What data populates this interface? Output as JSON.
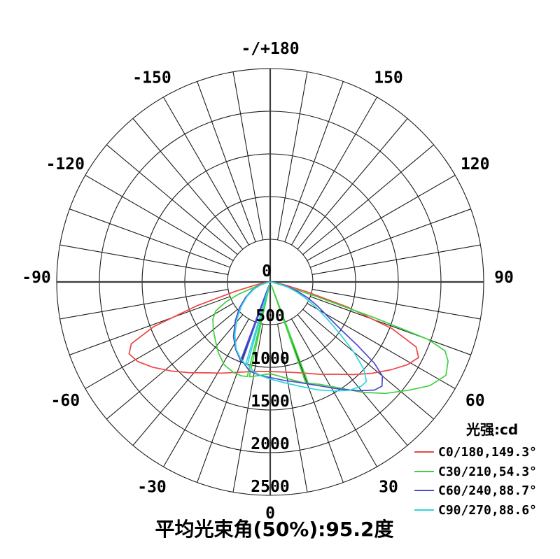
{
  "chart_data": {
    "type": "polar_photometric",
    "title": "平均光束角(50%):95.2度",
    "legend_title": "光强:cd",
    "unit": "cd",
    "radial_range": [
      0,
      2500
    ],
    "radial_ring_step": 500,
    "radial_tick_labels": [
      "500",
      "1000",
      "1500",
      "2000",
      "2500"
    ],
    "center_tick_label": "0",
    "spoke_step_deg": 10,
    "angle_label_step_deg": 30,
    "angle_labels": [
      {
        "deg": 180,
        "label": "-/+180"
      },
      {
        "deg": 150,
        "label": "150"
      },
      {
        "deg": -150,
        "label": "-150"
      },
      {
        "deg": 120,
        "label": "120"
      },
      {
        "deg": -120,
        "label": "-120"
      },
      {
        "deg": 90,
        "label": "90"
      },
      {
        "deg": -90,
        "label": "-90"
      },
      {
        "deg": 60,
        "label": "60"
      },
      {
        "deg": -60,
        "label": "-60"
      },
      {
        "deg": 30,
        "label": "30"
      },
      {
        "deg": -30,
        "label": "-30"
      },
      {
        "deg": 0,
        "label": "0"
      }
    ],
    "series": [
      {
        "name": "C0/180,149.3°",
        "color": "#ee4444",
        "points": [
          [
            -90,
            0
          ],
          [
            -86,
            20
          ],
          [
            -82,
            70
          ],
          [
            -78,
            180
          ],
          [
            -75,
            420
          ],
          [
            -72,
            900
          ],
          [
            -69,
            1460
          ],
          [
            -66,
            1780
          ],
          [
            -63,
            1855
          ],
          [
            -59,
            1810
          ],
          [
            -54,
            1700
          ],
          [
            -48,
            1560
          ],
          [
            -42,
            1430
          ],
          [
            -35,
            1300
          ],
          [
            -28,
            1210
          ],
          [
            -21,
            1135
          ],
          [
            -14,
            1085
          ],
          [
            -7,
            1058
          ],
          [
            0,
            1050
          ],
          [
            7,
            1062
          ],
          [
            14,
            1092
          ],
          [
            21,
            1145
          ],
          [
            28,
            1225
          ],
          [
            35,
            1320
          ],
          [
            42,
            1460
          ],
          [
            48,
            1600
          ],
          [
            54,
            1750
          ],
          [
            59,
            1880
          ],
          [
            63,
            1950
          ],
          [
            66,
            1870
          ],
          [
            69,
            1530
          ],
          [
            72,
            950
          ],
          [
            75,
            440
          ],
          [
            78,
            190
          ],
          [
            82,
            75
          ],
          [
            86,
            20
          ],
          [
            90,
            0
          ]
        ]
      },
      {
        "name": "C30/210,54.3°",
        "color": "#3fd13f",
        "points": [
          [
            -78,
            0
          ],
          [
            -75,
            60
          ],
          [
            -72,
            180
          ],
          [
            -69,
            390
          ],
          [
            -66,
            560
          ],
          [
            -62,
            720
          ],
          [
            -57,
            800
          ],
          [
            -50,
            870
          ],
          [
            -43,
            940
          ],
          [
            -36,
            1030
          ],
          [
            -29,
            1110
          ],
          [
            -22,
            1145
          ],
          [
            -17,
            1150
          ],
          [
            -13.6,
            1140
          ],
          [
            -13,
            45
          ],
          [
            -12.4,
            1138
          ],
          [
            -6,
            1100
          ],
          [
            0,
            1075
          ],
          [
            6,
            1112
          ],
          [
            12,
            1170
          ],
          [
            16,
            1215
          ],
          [
            19.4,
            1262
          ],
          [
            20,
            45
          ],
          [
            20.6,
            1268
          ],
          [
            26,
            1335
          ],
          [
            33,
            1480
          ],
          [
            40,
            1690
          ],
          [
            46,
            1880
          ],
          [
            52,
            2060
          ],
          [
            57,
            2230
          ],
          [
            62,
            2330
          ],
          [
            66,
            2280
          ],
          [
            68.5,
            2200
          ],
          [
            70,
            1970
          ],
          [
            71,
            1300
          ],
          [
            72.5,
            560
          ],
          [
            74.5,
            170
          ],
          [
            77,
            40
          ],
          [
            79,
            0
          ]
        ]
      },
      {
        "name": "C60/240,88.7°",
        "color": "#4a4ad2",
        "points": [
          [
            -86,
            0
          ],
          [
            -81,
            40
          ],
          [
            -74,
            120
          ],
          [
            -66,
            230
          ],
          [
            -58,
            340
          ],
          [
            -50,
            470
          ],
          [
            -42,
            610
          ],
          [
            -34,
            770
          ],
          [
            -27,
            890
          ],
          [
            -22,
            960
          ],
          [
            -20.6,
            988
          ],
          [
            -20,
            45
          ],
          [
            -19.4,
            985
          ],
          [
            -13,
            1072
          ],
          [
            -6,
            1102
          ],
          [
            0,
            1120
          ],
          [
            8,
            1165
          ],
          [
            16,
            1225
          ],
          [
            24,
            1325
          ],
          [
            32,
            1475
          ],
          [
            39,
            1640
          ],
          [
            44,
            1760
          ],
          [
            47,
            1790
          ],
          [
            50,
            1715
          ],
          [
            52,
            1550
          ],
          [
            54,
            1260
          ],
          [
            56,
            1000
          ],
          [
            59,
            790
          ],
          [
            63,
            620
          ],
          [
            67,
            480
          ],
          [
            71,
            340
          ],
          [
            75,
            210
          ],
          [
            79,
            110
          ],
          [
            84,
            30
          ],
          [
            88,
            0
          ]
        ]
      },
      {
        "name": "C90/270,88.6°",
        "color": "#30d5dd",
        "points": [
          [
            -86,
            0
          ],
          [
            -81,
            30
          ],
          [
            -74,
            105
          ],
          [
            -66,
            210
          ],
          [
            -58,
            320
          ],
          [
            -50,
            440
          ],
          [
            -42,
            580
          ],
          [
            -34,
            740
          ],
          [
            -27,
            880
          ],
          [
            -21,
            965
          ],
          [
            -16.6,
            1008
          ],
          [
            -16,
            40
          ],
          [
            -15.4,
            1005
          ],
          [
            -10,
            1072
          ],
          [
            -5,
            1108
          ],
          [
            0,
            1138
          ],
          [
            8,
            1192
          ],
          [
            16,
            1272
          ],
          [
            24,
            1385
          ],
          [
            31,
            1490
          ],
          [
            36,
            1570
          ],
          [
            41,
            1620
          ],
          [
            44,
            1622
          ],
          [
            47,
            1500
          ],
          [
            50,
            1280
          ],
          [
            53,
            1040
          ],
          [
            56,
            850
          ],
          [
            60,
            660
          ],
          [
            65,
            470
          ],
          [
            69,
            340
          ],
          [
            73,
            220
          ],
          [
            77,
            120
          ],
          [
            82,
            40
          ],
          [
            87,
            0
          ]
        ]
      }
    ],
    "legend_position": "bottom-right",
    "grid_on": true
  }
}
